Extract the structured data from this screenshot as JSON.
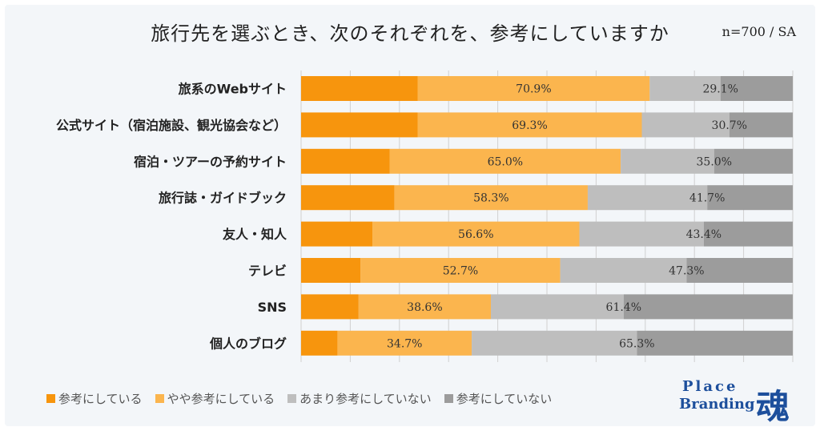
{
  "title": "旅行先を選ぶとき、次のそれぞれを、参考にしていますか",
  "note": "n=700 / SA",
  "brand": {
    "line1": "Place",
    "line2": "Branding",
    "kanji": "魂"
  },
  "colors": {
    "s1": "#f7950d",
    "s2": "#fbb54e",
    "s3": "#bebebe",
    "s4": "#9c9c9c",
    "grid": "#d0d0d0"
  },
  "chart_data": {
    "type": "bar",
    "orientation": "horizontal",
    "stacked": true,
    "xlim": [
      0,
      100
    ],
    "title": "旅行先を選ぶとき、次のそれぞれを、参考にしていますか",
    "categories": [
      "旅系のWebサイト",
      "公式サイト（宿泊施設、観光協会など）",
      "宿泊・ツアーの予約サイト",
      "旅行誌・ガイドブック",
      "友人・知人",
      "テレビ",
      "SNS",
      "個人のブログ"
    ],
    "series": [
      {
        "name": "参考にしている",
        "values": [
          23.7,
          23.7,
          18.0,
          19.0,
          14.5,
          12.1,
          11.7,
          7.4
        ]
      },
      {
        "name": "やや参考にしている",
        "values": [
          47.2,
          45.6,
          47.0,
          39.3,
          42.1,
          40.6,
          26.9,
          27.3
        ]
      },
      {
        "name": "あまり参考にしていない",
        "values": [
          14.4,
          17.8,
          19.0,
          24.3,
          25.3,
          25.7,
          27.0,
          33.6
        ]
      },
      {
        "name": "参考にしていない",
        "values": [
          14.7,
          12.9,
          16.0,
          17.4,
          18.1,
          21.6,
          34.4,
          31.7
        ]
      }
    ],
    "labels_positive": [
      "70.9%",
      "69.3%",
      "65.0%",
      "58.3%",
      "56.6%",
      "52.7%",
      "38.6%",
      "34.7%"
    ],
    "labels_negative": [
      "29.1%",
      "30.7%",
      "35.0%",
      "41.7%",
      "43.4%",
      "47.3%",
      "61.4%",
      "65.3%"
    ],
    "legend_position": "bottom",
    "grid": true
  }
}
